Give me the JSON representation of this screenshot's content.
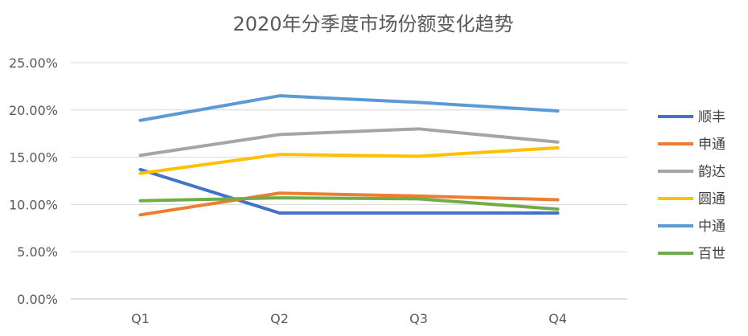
{
  "chart_data": {
    "type": "line",
    "title": "2020年分季度市场份额变化趋势",
    "categories": [
      "Q1",
      "Q2",
      "Q3",
      "Q4"
    ],
    "ylim": [
      0,
      25
    ],
    "yticks": [
      0,
      5,
      10,
      15,
      20,
      25
    ],
    "ytick_labels": [
      "0.00%",
      "5.00%",
      "10.00%",
      "15.00%",
      "20.00%",
      "25.00%"
    ],
    "grid": true,
    "legend_position": "right",
    "series": [
      {
        "name": "顺丰",
        "color": "#4472C4",
        "values": [
          13.7,
          9.1,
          9.1,
          9.1
        ]
      },
      {
        "name": "申通",
        "color": "#ED7D31",
        "values": [
          8.9,
          11.2,
          10.9,
          10.5
        ]
      },
      {
        "name": "韵达",
        "color": "#A5A5A5",
        "values": [
          15.2,
          17.4,
          18.0,
          16.6
        ]
      },
      {
        "name": "圆通",
        "color": "#FFC000",
        "values": [
          13.3,
          15.3,
          15.1,
          16.0
        ]
      },
      {
        "name": "中通",
        "color": "#5B9BD5",
        "values": [
          18.9,
          21.5,
          20.8,
          19.9
        ]
      },
      {
        "name": "百世",
        "color": "#70AD47",
        "values": [
          10.4,
          10.7,
          10.6,
          9.5
        ]
      }
    ]
  }
}
